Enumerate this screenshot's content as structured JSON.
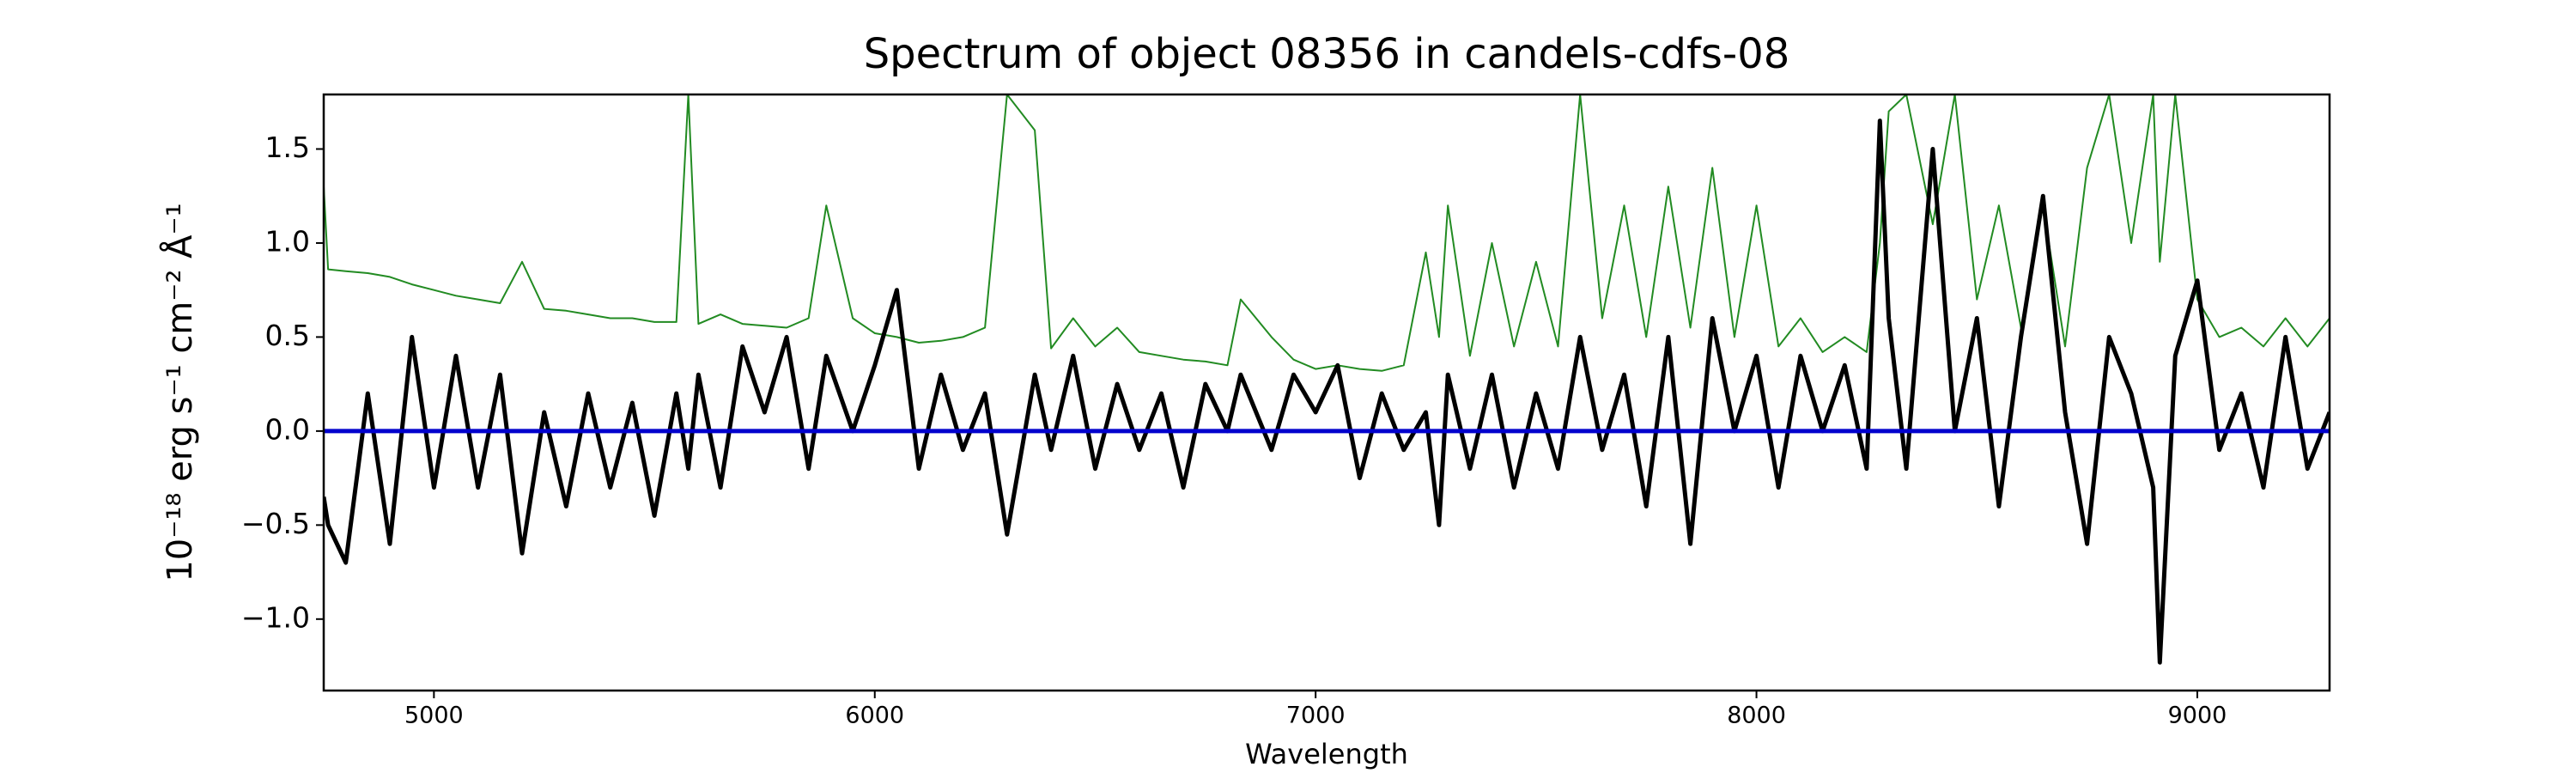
{
  "chart_data": {
    "type": "line",
    "title": "Spectrum of object 08356 in candels-cdfs-08",
    "x_label": "Wavelength",
    "y_label": "10⁻¹⁸ erg s⁻¹ cm⁻² Å⁻¹",
    "xlim": [
      4750,
      9300
    ],
    "ylim": [
      -1.38,
      1.79
    ],
    "xticks": [
      5000,
      6000,
      7000,
      8000,
      9000
    ],
    "yticks": [
      {
        "value": -1.0,
        "label": "−1.0"
      },
      {
        "value": -0.5,
        "label": "−0.5"
      },
      {
        "value": 0.0,
        "label": "0.0"
      },
      {
        "value": 0.5,
        "label": "0.5"
      },
      {
        "value": 1.0,
        "label": "1.0"
      },
      {
        "value": 1.5,
        "label": "1.5"
      }
    ],
    "x": [
      4750,
      4760,
      4800,
      4850,
      4900,
      4950,
      5000,
      5050,
      5100,
      5150,
      5200,
      5250,
      5300,
      5350,
      5400,
      5450,
      5500,
      5550,
      5577,
      5600,
      5650,
      5700,
      5750,
      5800,
      5850,
      5890,
      5950,
      6000,
      6050,
      6100,
      6150,
      6200,
      6250,
      6300,
      6363,
      6400,
      6450,
      6500,
      6550,
      6600,
      6650,
      6700,
      6750,
      6800,
      6830,
      6900,
      6950,
      7000,
      7050,
      7100,
      7150,
      7200,
      7250,
      7280,
      7300,
      7350,
      7400,
      7450,
      7500,
      7550,
      7600,
      7650,
      7700,
      7750,
      7800,
      7850,
      7900,
      7950,
      8000,
      8050,
      8100,
      8150,
      8200,
      8250,
      8280,
      8300,
      8340,
      8400,
      8450,
      8500,
      8550,
      8600,
      8650,
      8700,
      8750,
      8800,
      8850,
      8900,
      8915,
      8950,
      9000,
      9050,
      9100,
      9150,
      9200,
      9250,
      9300
    ],
    "series": [
      {
        "color": "#228b22",
        "width": 2,
        "values": [
          1.3,
          0.86,
          0.85,
          0.84,
          0.82,
          0.78,
          0.75,
          0.72,
          0.7,
          0.68,
          0.9,
          0.65,
          0.64,
          0.62,
          0.6,
          0.6,
          0.58,
          0.58,
          1.79,
          0.57,
          0.62,
          0.57,
          0.56,
          0.55,
          0.6,
          1.2,
          0.6,
          0.52,
          0.5,
          0.47,
          0.48,
          0.5,
          0.55,
          1.79,
          1.6,
          0.44,
          0.6,
          0.45,
          0.55,
          0.42,
          0.4,
          0.38,
          0.37,
          0.35,
          0.7,
          0.5,
          0.38,
          0.33,
          0.35,
          0.33,
          0.32,
          0.35,
          0.95,
          0.5,
          1.2,
          0.4,
          1.0,
          0.45,
          0.9,
          0.45,
          1.79,
          0.6,
          1.2,
          0.5,
          1.3,
          0.55,
          1.4,
          0.5,
          1.2,
          0.45,
          0.6,
          0.42,
          0.5,
          0.42,
          1.0,
          1.7,
          1.79,
          1.1,
          1.79,
          0.7,
          1.2,
          0.55,
          1.2,
          0.45,
          1.4,
          1.79,
          1.0,
          1.79,
          0.9,
          1.79,
          0.7,
          0.5,
          0.55,
          0.45,
          0.6,
          0.45,
          0.6
        ]
      },
      {
        "color": "#000000",
        "width": 5,
        "values": [
          -0.35,
          -0.5,
          -0.7,
          0.2,
          -0.6,
          0.5,
          -0.3,
          0.4,
          -0.3,
          0.3,
          -0.65,
          0.1,
          -0.4,
          0.2,
          -0.3,
          0.15,
          -0.45,
          0.2,
          -0.2,
          0.3,
          -0.3,
          0.45,
          0.1,
          0.5,
          -0.2,
          0.4,
          0.0,
          0.35,
          0.75,
          -0.2,
          0.3,
          -0.1,
          0.2,
          -0.55,
          0.3,
          -0.1,
          0.4,
          -0.2,
          0.25,
          -0.1,
          0.2,
          -0.3,
          0.25,
          0.0,
          0.3,
          -0.1,
          0.3,
          0.1,
          0.35,
          -0.25,
          0.2,
          -0.1,
          0.1,
          -0.5,
          0.3,
          -0.2,
          0.3,
          -0.3,
          0.2,
          -0.2,
          0.5,
          -0.1,
          0.3,
          -0.4,
          0.5,
          -0.6,
          0.6,
          0.0,
          0.4,
          -0.3,
          0.4,
          0.0,
          0.35,
          -0.2,
          1.65,
          0.6,
          -0.2,
          1.5,
          0.0,
          0.6,
          -0.4,
          0.5,
          1.25,
          0.1,
          -0.6,
          0.5,
          0.2,
          -0.3,
          -1.23,
          0.4,
          0.8,
          -0.1,
          0.2,
          -0.3,
          0.5,
          -0.2,
          0.1
        ]
      },
      {
        "color": "#0000cd",
        "width": 5,
        "x": [
          4750,
          9300
        ],
        "values": [
          0,
          0
        ]
      }
    ]
  }
}
